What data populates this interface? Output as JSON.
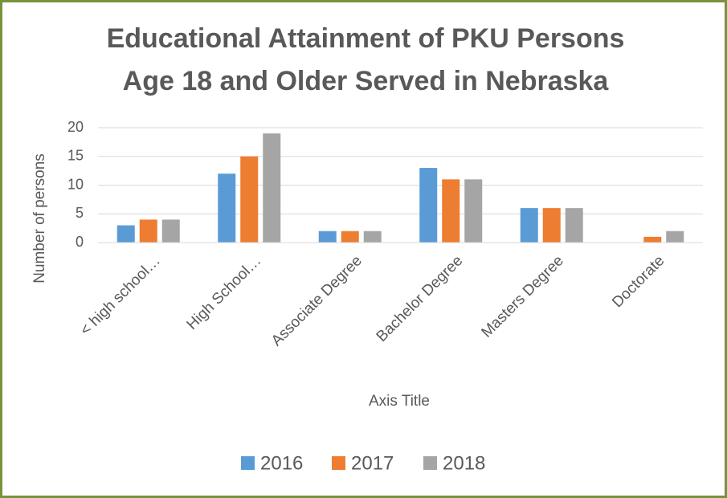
{
  "chart_data": {
    "type": "bar",
    "title": [
      "Educational Attainment of PKU Persons",
      "Age 18 and Older Served in Nebraska"
    ],
    "x_axis_title": "Axis Title",
    "y_axis_title": "Number of persons",
    "categories": [
      "< high school…",
      "High School…",
      "Associate Degree",
      "Bachelor Degree",
      "Masters Degree",
      "Doctorate"
    ],
    "series": [
      {
        "name": "2016",
        "color": "#5b9bd5",
        "values": [
          3,
          12,
          2,
          13,
          6,
          0
        ]
      },
      {
        "name": "2017",
        "color": "#ed7d31",
        "values": [
          4,
          15,
          2,
          11,
          6,
          1
        ]
      },
      {
        "name": "2018",
        "color": "#a5a5a5",
        "values": [
          4,
          19,
          2,
          11,
          6,
          2
        ]
      }
    ],
    "ylim": [
      0,
      20
    ],
    "yticks": [
      0,
      5,
      10,
      15,
      20
    ],
    "grid": true,
    "legend": "bottom"
  }
}
